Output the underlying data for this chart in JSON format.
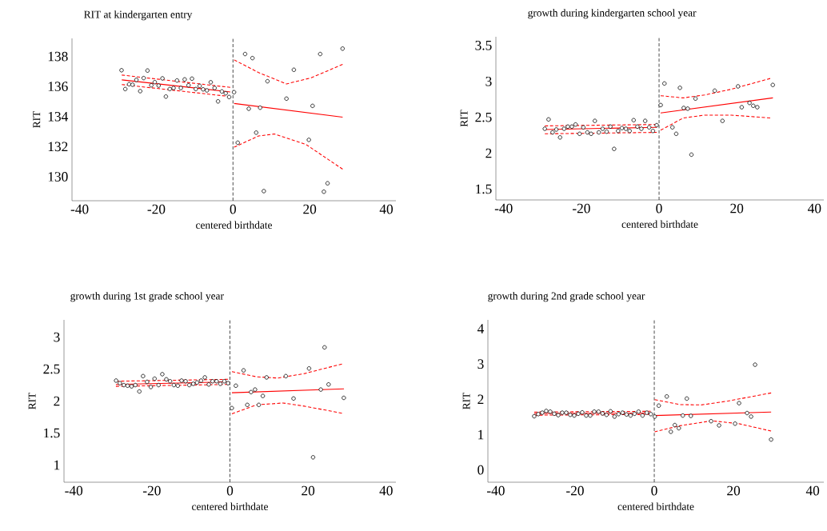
{
  "chart_data": [
    {
      "type": "scatter",
      "title": "RIT at kindergarten entry",
      "xlabel": "centered birthdate",
      "ylabel": "RIT",
      "xlim": [
        -42,
        42.5
      ],
      "ylim": [
        128.4,
        139.2
      ],
      "xticks": [
        -40,
        -20,
        0,
        20,
        40
      ],
      "yticks": [
        130,
        132,
        134,
        136,
        138
      ],
      "ref_lines": [
        {
          "axis": "x",
          "value": 0,
          "color": "#404040",
          "line_style": "dashed"
        }
      ],
      "series": [
        {
          "type": "scatter",
          "color": "#000000",
          "marker": "circle",
          "x": [
            -29.07,
            -28.1,
            -27.1,
            -26.2,
            -25.2,
            -24.2,
            -23.3,
            -22.3,
            -21.3,
            -20.4,
            -19.4,
            -18.4,
            -17.5,
            -16.5,
            -15.5,
            -14.6,
            -13.6,
            -12.6,
            -11.6,
            -10.7,
            -9.7,
            -8.7,
            -7.8,
            -6.8,
            -5.8,
            -4.8,
            -3.9,
            -2.9,
            -1.9,
            -1.0,
            0.28,
            1.24,
            3.16,
            4.12,
            5.08,
            6.05,
            7.08,
            8.04,
            9.0,
            13.95,
            15.88,
            19.79,
            20.76,
            22.75,
            23.71,
            24.67,
            28.59
          ],
          "values": [
            137.08,
            135.83,
            136.15,
            136.12,
            136.44,
            135.69,
            136.56,
            137.06,
            136.08,
            136.29,
            136.06,
            136.54,
            135.33,
            135.83,
            135.9,
            136.4,
            135.9,
            136.47,
            136.08,
            136.52,
            135.83,
            136.04,
            135.81,
            135.74,
            136.28,
            135.9,
            135.01,
            135.67,
            135.55,
            135.3,
            135.62,
            132.26,
            138.16,
            134.52,
            137.89,
            132.93,
            134.59,
            129.04,
            136.35,
            135.19,
            137.11,
            132.45,
            134.71,
            138.16,
            129.0,
            129.56,
            138.52
          ]
        },
        {
          "type": "line",
          "color": "#ff0000",
          "line_style": "solid",
          "x": [
            -29,
            -0.7
          ],
          "values": [
            136.44,
            135.64
          ]
        },
        {
          "type": "line",
          "color": "#ff0000",
          "line_style": "dashed",
          "x": [
            -29,
            -0.7
          ],
          "values": [
            136.76,
            135.94
          ]
        },
        {
          "type": "line",
          "color": "#ff0000",
          "line_style": "dashed",
          "x": [
            -29,
            -0.7
          ],
          "values": [
            136.13,
            135.33
          ]
        },
        {
          "type": "line",
          "color": "#ff0000",
          "line_style": "solid",
          "x": [
            0.3,
            28.6
          ],
          "values": [
            134.87,
            133.96
          ]
        },
        {
          "type": "line",
          "color": "#ff0000",
          "line_style": "dashed",
          "x": [
            0.3,
            6.67,
            13.95,
            20.4,
            28.6
          ],
          "values": [
            137.77,
            136.93,
            136.17,
            136.58,
            137.47
          ]
        },
        {
          "type": "line",
          "color": "#ff0000",
          "line_style": "dashed",
          "x": [
            0.3,
            6.67,
            10.8,
            19.0,
            28.6
          ],
          "values": [
            131.96,
            132.71,
            132.84,
            132.15,
            130.5
          ]
        }
      ]
    },
    {
      "type": "scatter",
      "title": "growth during kindergarten school year",
      "xlabel": "centered birthdate",
      "ylabel": "RIT",
      "xlim": [
        -42,
        42.4
      ],
      "ylim": [
        1.35,
        3.62
      ],
      "xticks": [
        -40,
        -20,
        0,
        20,
        40
      ],
      "yticks": [
        1.5,
        2,
        2.5,
        3,
        3.5
      ],
      "ref_lines": [
        {
          "axis": "x",
          "value": 0,
          "color": "#404040",
          "line_style": "dashed"
        }
      ],
      "series": [
        {
          "type": "scatter",
          "color": "#000000",
          "marker": "circle",
          "x": [
            -29.41,
            -28.44,
            -27.41,
            -26.45,
            -25.48,
            -24.45,
            -23.48,
            -22.45,
            -21.49,
            -20.45,
            -19.49,
            -18.46,
            -17.49,
            -16.53,
            -15.5,
            -14.53,
            -13.5,
            -12.53,
            -11.57,
            -10.54,
            -9.57,
            -8.54,
            -7.58,
            -6.54,
            -5.58,
            -4.55,
            -3.58,
            -2.55,
            -1.58,
            -0.62,
            0.41,
            1.38,
            3.44,
            4.41,
            5.37,
            6.34,
            7.37,
            8.33,
            9.37,
            14.33,
            16.32,
            20.32,
            21.28,
            23.28,
            24.24,
            25.28,
            29.27
          ],
          "values": [
            2.34,
            2.47,
            2.29,
            2.33,
            2.22,
            2.34,
            2.37,
            2.37,
            2.4,
            2.27,
            2.36,
            2.29,
            2.27,
            2.45,
            2.29,
            2.34,
            2.3,
            2.37,
            2.06,
            2.31,
            2.35,
            2.34,
            2.31,
            2.46,
            2.37,
            2.34,
            2.45,
            2.36,
            2.31,
            2.39,
            2.67,
            2.97,
            2.36,
            2.27,
            2.91,
            2.63,
            2.62,
            1.98,
            2.76,
            2.87,
            2.45,
            2.93,
            2.64,
            2.7,
            2.66,
            2.64,
            2.95
          ]
        },
        {
          "type": "line",
          "color": "#ff0000",
          "line_style": "solid",
          "x": [
            -29.4,
            -0.6
          ],
          "values": [
            2.33,
            2.36
          ]
        },
        {
          "type": "line",
          "color": "#ff0000",
          "line_style": "dashed",
          "x": [
            -29.4,
            -0.6
          ],
          "values": [
            2.38,
            2.4
          ]
        },
        {
          "type": "line",
          "color": "#ff0000",
          "line_style": "dashed",
          "x": [
            -29.4,
            -0.6
          ],
          "values": [
            2.27,
            2.29
          ]
        },
        {
          "type": "line",
          "color": "#ff0000",
          "line_style": "solid",
          "x": [
            0.4,
            29.3
          ],
          "values": [
            2.56,
            2.77
          ]
        },
        {
          "type": "line",
          "color": "#ff0000",
          "line_style": "dashed",
          "x": [
            0.4,
            6.2,
            11.7,
            18.6,
            28.6
          ],
          "values": [
            2.8,
            2.77,
            2.81,
            2.89,
            3.04
          ]
        },
        {
          "type": "line",
          "color": "#ff0000",
          "line_style": "dashed",
          "x": [
            0.4,
            6.2,
            11.7,
            18.6,
            28.6
          ],
          "values": [
            2.32,
            2.49,
            2.53,
            2.53,
            2.49
          ]
        }
      ]
    },
    {
      "type": "scatter",
      "title": "growth during 1st grade school year",
      "xlabel": "centered birthdate",
      "ylabel": "RIT",
      "xlim": [
        -42.5,
        42.5
      ],
      "ylim": [
        0.73,
        3.27
      ],
      "xticks": [
        -40,
        -20,
        0,
        20,
        40
      ],
      "yticks": [
        1,
        1.5,
        2,
        2.5,
        3
      ],
      "ref_lines": [
        {
          "axis": "x",
          "value": 0,
          "color": "#404040",
          "line_style": "dashed"
        }
      ],
      "series": [
        {
          "type": "scatter",
          "color": "#000000",
          "marker": "circle",
          "x": [
            -29.16,
            -28.2,
            -27.17,
            -26.21,
            -25.19,
            -24.23,
            -23.2,
            -22.25,
            -21.22,
            -20.26,
            -19.3,
            -18.28,
            -17.32,
            -16.29,
            -15.33,
            -14.37,
            -13.35,
            -12.39,
            -11.36,
            -10.4,
            -9.38,
            -8.42,
            -7.39,
            -6.43,
            -5.41,
            -4.45,
            -3.42,
            -2.46,
            -1.44,
            -0.48,
            0.48,
            1.51,
            3.49,
            4.45,
            5.41,
            6.43,
            7.39,
            8.42,
            9.38,
            14.31,
            16.29,
            20.26,
            21.29,
            23.27,
            24.23,
            25.26,
            29.16
          ],
          "values": [
            2.32,
            2.28,
            2.25,
            2.24,
            2.23,
            2.25,
            2.15,
            2.39,
            2.3,
            2.22,
            2.35,
            2.25,
            2.42,
            2.34,
            2.31,
            2.25,
            2.24,
            2.32,
            2.31,
            2.25,
            2.27,
            2.29,
            2.32,
            2.37,
            2.26,
            2.31,
            2.31,
            2.27,
            2.31,
            2.28,
            1.89,
            2.24,
            2.48,
            1.94,
            2.14,
            2.18,
            1.94,
            2.08,
            2.37,
            2.39,
            2.04,
            2.51,
            1.12,
            2.18,
            2.84,
            2.26,
            2.05
          ]
        },
        {
          "type": "line",
          "color": "#ff0000",
          "line_style": "solid",
          "x": [
            -29.2,
            -0.5
          ],
          "values": [
            2.26,
            2.3
          ]
        },
        {
          "type": "line",
          "color": "#ff0000",
          "line_style": "dashed",
          "x": [
            -29.2,
            -0.5
          ],
          "values": [
            2.31,
            2.34
          ]
        },
        {
          "type": "line",
          "color": "#ff0000",
          "line_style": "dashed",
          "x": [
            -29.2,
            -0.5
          ],
          "values": [
            2.23,
            2.26
          ]
        },
        {
          "type": "line",
          "color": "#ff0000",
          "line_style": "solid",
          "x": [
            0.5,
            29.2
          ],
          "values": [
            2.13,
            2.19
          ]
        },
        {
          "type": "line",
          "color": "#ff0000",
          "line_style": "dashed",
          "x": [
            0.5,
            6.78,
            12.25,
            19.1,
            28.68
          ],
          "values": [
            2.46,
            2.38,
            2.36,
            2.43,
            2.58
          ]
        },
        {
          "type": "line",
          "color": "#ff0000",
          "line_style": "dashed",
          "x": [
            0.5,
            6.78,
            13.6,
            19.1,
            28.68
          ],
          "values": [
            1.8,
            1.94,
            1.97,
            1.92,
            1.81
          ]
        }
      ]
    },
    {
      "type": "scatter",
      "title": "growth during 2nd grade school year",
      "xlabel": "centered birthdate",
      "ylabel": "RIT",
      "xlim": [
        -42,
        42.8
      ],
      "ylim": [
        -0.35,
        4.25
      ],
      "xticks": [
        -40,
        -20,
        0,
        20,
        40
      ],
      "yticks": [
        0,
        1,
        2,
        3,
        4
      ],
      "ref_lines": [
        {
          "axis": "x",
          "value": 0,
          "color": "#404040",
          "line_style": "dashed"
        }
      ],
      "series": [
        {
          "type": "scatter",
          "color": "#000000",
          "marker": "circle",
          "x": [
            -30.3,
            -29.29,
            -28.28,
            -27.27,
            -26.26,
            -25.25,
            -24.24,
            -23.23,
            -22.22,
            -21.21,
            -20.2,
            -19.19,
            -18.18,
            -17.17,
            -16.16,
            -15.15,
            -14.07,
            -13.06,
            -12.05,
            -11.04,
            -10.03,
            -9.02,
            -8.01,
            -7.0,
            -5.99,
            -4.98,
            -3.97,
            -2.96,
            -1.89,
            -0.88,
            0.13,
            1.14,
            3.16,
            4.18,
            5.19,
            6.2,
            7.21,
            8.22,
            9.23,
            14.34,
            16.36,
            20.4,
            21.41,
            23.43,
            24.44,
            25.45,
            29.49
          ],
          "values": [
            1.52,
            1.58,
            1.62,
            1.67,
            1.65,
            1.59,
            1.55,
            1.62,
            1.62,
            1.56,
            1.54,
            1.59,
            1.63,
            1.54,
            1.54,
            1.65,
            1.65,
            1.6,
            1.56,
            1.66,
            1.51,
            1.58,
            1.62,
            1.57,
            1.54,
            1.59,
            1.65,
            1.54,
            1.62,
            1.58,
            1.51,
            1.82,
            2.08,
            1.08,
            1.27,
            1.18,
            1.54,
            2.02,
            1.53,
            1.38,
            1.26,
            1.31,
            1.89,
            1.61,
            1.51,
            2.98,
            0.86
          ]
        },
        {
          "type": "line",
          "color": "#ff0000",
          "line_style": "solid",
          "x": [
            -30.3,
            -0.9
          ],
          "values": [
            1.6,
            1.61
          ]
        },
        {
          "type": "line",
          "color": "#ff0000",
          "line_style": "dashed",
          "x": [
            -30.3,
            -0.9
          ],
          "values": [
            1.64,
            1.66
          ]
        },
        {
          "type": "line",
          "color": "#ff0000",
          "line_style": "dashed",
          "x": [
            -30.3,
            -0.9
          ],
          "values": [
            1.55,
            1.57
          ]
        },
        {
          "type": "line",
          "color": "#ff0000",
          "line_style": "solid",
          "x": [
            0.1,
            29.5
          ],
          "values": [
            1.54,
            1.64
          ]
        },
        {
          "type": "line",
          "color": "#ff0000",
          "line_style": "dashed",
          "x": [
            0.1,
            6.46,
            11.85,
            18.6,
            29.5
          ],
          "values": [
            1.99,
            1.85,
            1.84,
            1.95,
            2.18
          ]
        },
        {
          "type": "line",
          "color": "#ff0000",
          "line_style": "dashed",
          "x": [
            0.1,
            6.46,
            14.5,
            21.3,
            29.5
          ],
          "values": [
            1.08,
            1.25,
            1.39,
            1.31,
            1.1
          ]
        }
      ]
    }
  ]
}
